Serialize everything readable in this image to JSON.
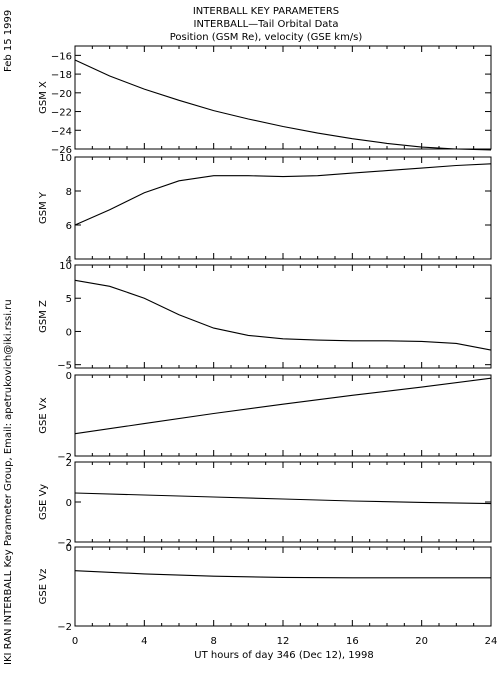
{
  "header": {
    "title_line1": "INTERBALL KEY PARAMETERS",
    "title_line2": "INTERBALL—Tail Orbital Data",
    "title_line3": "Position (GSM Re), velocity (GSE km/s)"
  },
  "side_date": "Feb 15 1999",
  "side_credit": "IKI RAN INTERBALL Key Parameter Group, Email: apetrukovich@iki.rssi.ru",
  "xlabel": "UT hours of day 346 (Dec 12), 1998",
  "chart_data": [
    {
      "type": "line",
      "ylabel": "GSM X",
      "xlim": [
        0,
        24
      ],
      "ylim": [
        -26,
        -15
      ],
      "yticks": [
        -16,
        -18,
        -20,
        -22,
        -24,
        -26
      ],
      "x": [
        0,
        2,
        4,
        6,
        8,
        10,
        12,
        14,
        16,
        18,
        20,
        22,
        24
      ],
      "values": [
        -16.5,
        -18.2,
        -19.6,
        -20.8,
        -21.9,
        -22.8,
        -23.6,
        -24.3,
        -24.9,
        -25.4,
        -25.8,
        -26.0,
        -26.1
      ]
    },
    {
      "type": "line",
      "ylabel": "GSM Y",
      "xlim": [
        0,
        24
      ],
      "ylim": [
        4,
        10
      ],
      "yticks": [
        10,
        8,
        6,
        4
      ],
      "x": [
        0,
        2,
        4,
        6,
        8,
        10,
        12,
        14,
        16,
        18,
        20,
        22,
        24
      ],
      "values": [
        6.0,
        6.9,
        7.9,
        8.6,
        8.9,
        8.9,
        8.85,
        8.9,
        9.05,
        9.2,
        9.35,
        9.5,
        9.6
      ]
    },
    {
      "type": "line",
      "ylabel": "GSM Z",
      "xlim": [
        0,
        24
      ],
      "ylim": [
        -5.5,
        10
      ],
      "yticks": [
        10,
        5,
        0,
        -5
      ],
      "x": [
        0,
        2,
        4,
        6,
        8,
        10,
        12,
        14,
        16,
        18,
        20,
        22,
        24
      ],
      "values": [
        7.7,
        6.8,
        5.0,
        2.5,
        0.5,
        -0.6,
        -1.1,
        -1.3,
        -1.4,
        -1.4,
        -1.5,
        -1.8,
        -2.8
      ]
    },
    {
      "type": "line",
      "ylabel": "GSE Vx",
      "xlim": [
        0,
        24
      ],
      "ylim": [
        -2,
        0
      ],
      "yticks": [
        0,
        -2
      ],
      "x": [
        0,
        4,
        8,
        12,
        16,
        20,
        24
      ],
      "values": [
        -1.45,
        -1.2,
        -0.95,
        -0.72,
        -0.5,
        -0.3,
        -0.08
      ]
    },
    {
      "type": "line",
      "ylabel": "GSE Vy",
      "xlim": [
        0,
        24
      ],
      "ylim": [
        -2,
        2
      ],
      "yticks": [
        2,
        0,
        -2
      ],
      "x": [
        0,
        4,
        8,
        12,
        16,
        20,
        24
      ],
      "values": [
        0.45,
        0.35,
        0.25,
        0.15,
        0.05,
        -0.02,
        -0.08
      ]
    },
    {
      "type": "line",
      "ylabel": "GSE Vz",
      "xlim": [
        0,
        24
      ],
      "ylim": [
        -2,
        0
      ],
      "yticks": [
        0,
        -2
      ],
      "x": [
        0,
        4,
        8,
        12,
        16,
        20,
        24
      ],
      "values": [
        -0.6,
        -0.68,
        -0.74,
        -0.77,
        -0.78,
        -0.78,
        -0.78
      ]
    }
  ],
  "xticks": [
    0,
    4,
    8,
    12,
    16,
    20,
    24
  ]
}
